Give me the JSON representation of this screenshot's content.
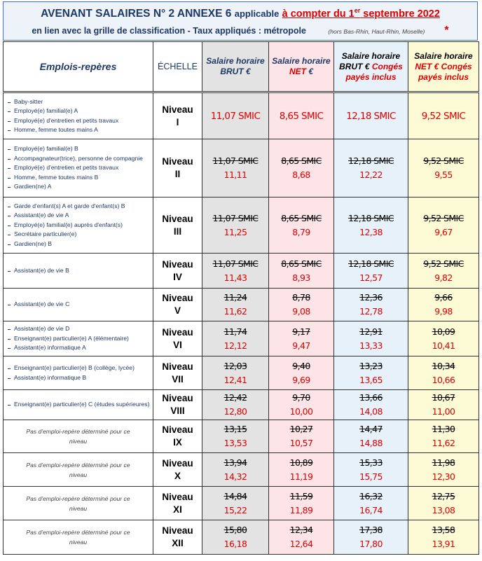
{
  "header": {
    "title_main": "AVENANT SALAIRES N° 2 ANNEXE 6",
    "title_applicable": "applicable",
    "title_date_prefix": "à compter du 1",
    "title_date_sup": "er",
    "title_date_suffix": "septembre 2022",
    "subtitle": "en lien avec la grille de classification - Taux appliqués : métropole",
    "subtitle_note": "(hors Bas-Rhin, Haut-Rhin, Moselle)",
    "asterisk": "*"
  },
  "table": {
    "columns": [
      [
        {
          "text": "Emplois-repères"
        }
      ],
      [
        {
          "text": "ÉCHELLE"
        }
      ],
      [
        {
          "text": "Salaire horaire BRUT €"
        }
      ],
      [
        {
          "text": "Salaire horaire"
        },
        {
          "text": "NET",
          "color": "#e00000"
        },
        {
          "text": "€"
        }
      ],
      [
        {
          "text": "Salaire horaire BRUT €"
        },
        {
          "text": "Congés payés inclus",
          "color": "#e00000"
        }
      ],
      [
        {
          "text": "Salaire horaire"
        },
        {
          "text": "NET €",
          "color": "#e00000"
        },
        {
          "text": "Congés payés inclus",
          "color": "#e00000"
        }
      ]
    ],
    "rows": [
      {
        "jobs": [
          "Baby-sitter",
          "Employé(e) familial(e) A",
          "Employé(e) d'entretien et petits travaux",
          "Homme, femme toutes mains A"
        ],
        "scale_label": "Niveau",
        "scale": "I",
        "values": [
          {
            "current": "11,07 SMIC"
          },
          {
            "current": "8,65 SMIC"
          },
          {
            "current": "12,18 SMIC"
          },
          {
            "current": "9,52 SMIC"
          }
        ]
      },
      {
        "jobs": [
          "Employé(e) familial(e) B",
          "Accompagnateur(trice), personne de compagnie",
          "Employé(e) d'entretien et petits travaux",
          "Homme, femme toutes mains B",
          "Gardien(ne) A"
        ],
        "scale_label": "Niveau",
        "scale": "II",
        "values": [
          {
            "old": "11,07 SMIC",
            "new": "11,11"
          },
          {
            "old": "8,65 SMIC",
            "new": "8,68"
          },
          {
            "old": "12,18 SMIC",
            "new": "12,22"
          },
          {
            "old": "9,52 SMIC",
            "new": "9,55"
          }
        ]
      },
      {
        "jobs": [
          "Garde d'enfant(s) A et garde d'enfant(s) B",
          "Assistant(e) de vie A",
          "Employé(e) familial(e) auprès d'enfant(s)",
          "Secrétaire particulier(e)",
          "Gardien(ne) B"
        ],
        "scale_label": "Niveau",
        "scale": "III",
        "values": [
          {
            "old": "11,07 SMIC",
            "new": "11,25"
          },
          {
            "old": "8,65 SMIC",
            "new": "8,79"
          },
          {
            "old": "12,18 SMIC",
            "new": "12,38"
          },
          {
            "old": "9,52 SMIC",
            "new": "9,67"
          }
        ]
      },
      {
        "jobs": [
          "Assistant(e) de vie B"
        ],
        "scale_label": "Niveau",
        "scale": "IV",
        "values": [
          {
            "old": "11,07 SMIC",
            "new": "11,43"
          },
          {
            "old": "8,65 SMIC",
            "new": "8,93"
          },
          {
            "old": "12,18 SMIC",
            "new": "12,57"
          },
          {
            "old": "9,52 SMIC",
            "new": "9,82"
          }
        ]
      },
      {
        "jobs": [
          "Assistant(e) de vie C"
        ],
        "scale_label": "Niveau",
        "scale": "V",
        "values": [
          {
            "old": "11,24",
            "new": "11,62"
          },
          {
            "old": "8,78",
            "new": "9,08"
          },
          {
            "old": "12,36",
            "new": "12,78"
          },
          {
            "old": "9,66",
            "new": "9,98"
          }
        ]
      },
      {
        "jobs": [
          "Assistant(e) de vie D",
          "Enseignant(e) particulier(e) A (élémentaire)",
          "Assistant(e) informatique A"
        ],
        "scale_label": "Niveau",
        "scale": "VI",
        "values": [
          {
            "old": "11,74",
            "new": "12,12"
          },
          {
            "old": "9,17",
            "new": "9,47"
          },
          {
            "old": "12,91",
            "new": "13,33"
          },
          {
            "old": "10,09",
            "new": "10,41"
          }
        ]
      },
      {
        "jobs": [
          "Enseignant(e) particulier(e) B (collège, lycée)",
          "Assistant(e) informatique B"
        ],
        "scale_label": "Niveau",
        "scale": "VII",
        "values": [
          {
            "old": "12,03",
            "new": "12,41"
          },
          {
            "old": "9,40",
            "new": "9,69"
          },
          {
            "old": "13,23",
            "new": "13,65"
          },
          {
            "old": "10,34",
            "new": "10,66"
          }
        ]
      },
      {
        "jobs": [
          "Enseignant(e) particulier(e) C (études supérieures)"
        ],
        "scale_label": "Niveau",
        "scale": "VIII",
        "values": [
          {
            "old": "12,42",
            "new": "12,80"
          },
          {
            "old": "9,70",
            "new": "10,00"
          },
          {
            "old": "13,66",
            "new": "14,08"
          },
          {
            "old": "10,67",
            "new": "11,00"
          }
        ]
      },
      {
        "note": "Pas d'emploi-repère déterminé pour ce niveau",
        "scale_label": "Niveau",
        "scale": "IX",
        "values": [
          {
            "old": "13,15",
            "new": "13,53"
          },
          {
            "old": "10,27",
            "new": "10,57"
          },
          {
            "old": "14,47",
            "new": "14,88"
          },
          {
            "old": "11,30",
            "new": "11,62"
          }
        ]
      },
      {
        "note": "Pas d'emploi-repère déterminé pour ce niveau",
        "scale_label": "Niveau",
        "scale": "X",
        "values": [
          {
            "old": "13,94",
            "new": "14,32"
          },
          {
            "old": "10,89",
            "new": "11,19"
          },
          {
            "old": "15,33",
            "new": "15,75"
          },
          {
            "old": "11,98",
            "new": "12,30"
          }
        ]
      },
      {
        "note": "Pas d'emploi-repère déterminé pour ce niveau",
        "scale_label": "Niveau",
        "scale": "XI",
        "values": [
          {
            "old": "14,84",
            "new": "15,22"
          },
          {
            "old": "11,59",
            "new": "11,89"
          },
          {
            "old": "16,32",
            "new": "16,74"
          },
          {
            "old": "12,75",
            "new": "13,08"
          }
        ]
      },
      {
        "note": "Pas d'emploi-repère déterminé pour ce niveau",
        "scale_label": "Niveau",
        "scale": "XII",
        "values": [
          {
            "old": "15,80",
            "new": "16,18"
          },
          {
            "old": "12,34",
            "new": "12,64"
          },
          {
            "old": "17,38",
            "new": "17,80"
          },
          {
            "old": "13,58",
            "new": "13,91"
          }
        ]
      }
    ]
  }
}
